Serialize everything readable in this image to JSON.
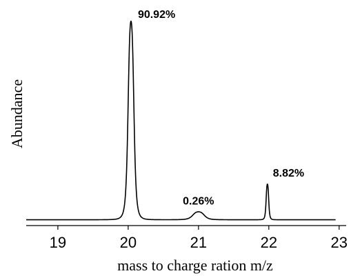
{
  "chart_data": {
    "type": "line",
    "title": "",
    "xlabel": "mass to charge ration  m/z",
    "ylabel": "Abundance",
    "xlim": [
      18.55,
      23.1
    ],
    "ylim": [
      0,
      100
    ],
    "xticks": [
      "19",
      "20",
      "21",
      "22",
      "23"
    ],
    "grid": false,
    "peaks": [
      {
        "x": 20.04,
        "height": 100.0,
        "label": "90.92%"
      },
      {
        "x": 21.0,
        "height": 4.0,
        "label": "0.26%"
      },
      {
        "x": 21.98,
        "height": 18.0,
        "label": "8.82%"
      }
    ],
    "baseline": 0.5
  }
}
